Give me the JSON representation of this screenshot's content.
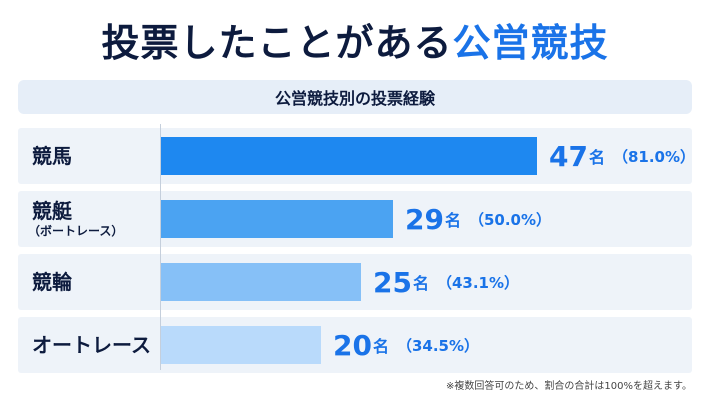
{
  "title": {
    "main": "投票したことがある",
    "accent": "公営競技"
  },
  "subtitle": "公営競技別の投票経験",
  "footnote": "※複数回答可のため、割合の合計は100%を超えます。",
  "colors": {
    "accent": "#1a73e8",
    "dark": "#0d1b3e"
  },
  "chart_data": {
    "type": "bar",
    "orientation": "horizontal",
    "title": "公営競技別の投票経験",
    "unit": "名",
    "categories": [
      {
        "label": "競馬",
        "sublabel": ""
      },
      {
        "label": "競艇",
        "sublabel": "（ボートレース）"
      },
      {
        "label": "競輪",
        "sublabel": ""
      },
      {
        "label": "オートレース",
        "sublabel": ""
      }
    ],
    "values": [
      47,
      29,
      25,
      20
    ],
    "percent_labels": [
      "（81.0%）",
      "（50.0%）",
      "（43.1%）",
      "（34.5%）"
    ],
    "bar_colors": [
      "#1e88f0",
      "#4ba3f2",
      "#86c0f7",
      "#b9dafb"
    ]
  }
}
